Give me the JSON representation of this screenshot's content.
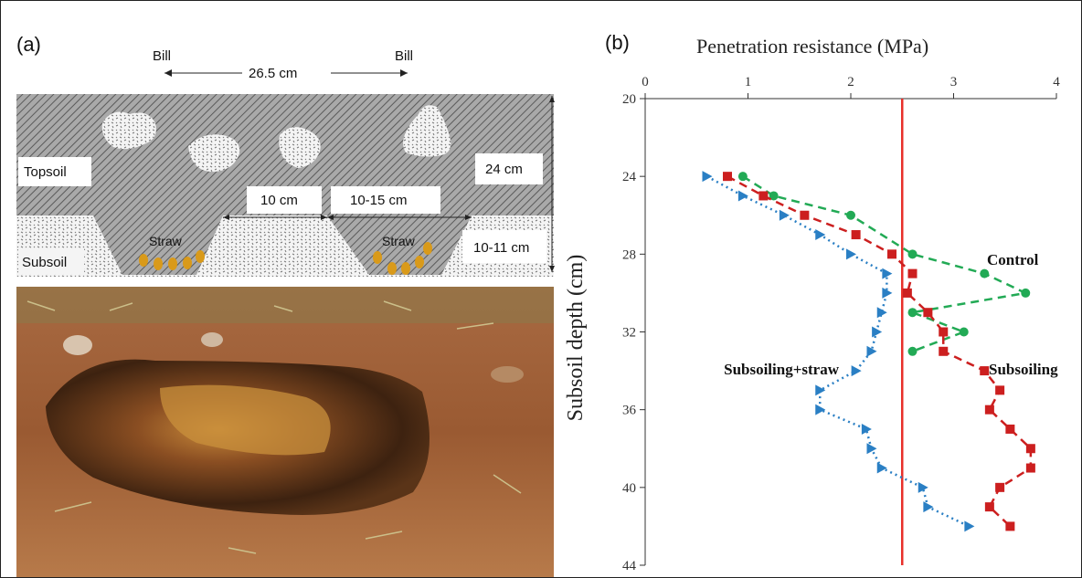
{
  "panel_a": {
    "label": "(a)",
    "bill_left": "Bill",
    "bill_right": "Bill",
    "spacing": "26.5 cm",
    "topsoil_label": "Topsoil",
    "subsoil_label": "Subsoil",
    "depth_topsoil": "24 cm",
    "depth_subsoil": "10-11 cm",
    "width_bottom": "10 cm",
    "width_top": "10-15 cm",
    "straw_left": "Straw",
    "straw_right": "Straw",
    "colors": {
      "topsoil": "#8c8c8c",
      "subsoil": "#e8e8e8",
      "straw": "#d99a1a",
      "soil_dark": "#4a2a12",
      "soil_light": "#b06a3a"
    }
  },
  "chart_data": {
    "type": "line",
    "panel_label": "(b)",
    "title": "Penetration resistance (MPa)",
    "xlabel": "Penetration resistance (MPa)",
    "ylabel": "Subsoil depth (cm)",
    "xlim": [
      0,
      4
    ],
    "ylim": [
      20,
      44
    ],
    "x_axis_position": "top",
    "y_inverted": true,
    "x_ticks": [
      "0",
      "1",
      "2",
      "3",
      "4"
    ],
    "y_ticks": [
      "20",
      "24",
      "28",
      "32",
      "36",
      "40",
      "44"
    ],
    "reference_line": {
      "x": 2.5,
      "color": "#e8302a"
    },
    "series": [
      {
        "name": "Control",
        "color": "#22aa55",
        "marker": "circle",
        "dash": "dashed",
        "points": [
          [
            0.95,
            24
          ],
          [
            1.25,
            25
          ],
          [
            2.0,
            26
          ],
          [
            2.6,
            28
          ],
          [
            3.3,
            29
          ],
          [
            3.7,
            30
          ],
          [
            2.6,
            31
          ],
          [
            3.1,
            32
          ],
          [
            2.6,
            33
          ]
        ]
      },
      {
        "name": "Subsoiling",
        "color": "#cc1f1f",
        "marker": "square",
        "dash": "dashed",
        "points": [
          [
            0.8,
            24
          ],
          [
            1.15,
            25
          ],
          [
            1.55,
            26
          ],
          [
            2.05,
            27
          ],
          [
            2.4,
            28
          ],
          [
            2.6,
            29
          ],
          [
            2.55,
            30
          ],
          [
            2.75,
            31
          ],
          [
            2.9,
            32
          ],
          [
            2.9,
            33
          ],
          [
            3.3,
            34
          ],
          [
            3.45,
            35
          ],
          [
            3.35,
            36
          ],
          [
            3.55,
            37
          ],
          [
            3.75,
            38
          ],
          [
            3.75,
            39
          ],
          [
            3.45,
            40
          ],
          [
            3.35,
            41
          ],
          [
            3.55,
            42
          ]
        ]
      },
      {
        "name": "Subsoiling+straw",
        "color": "#2a7fc4",
        "marker": "triangle",
        "dash": "dotted",
        "points": [
          [
            0.6,
            24
          ],
          [
            0.95,
            25
          ],
          [
            1.35,
            26
          ],
          [
            1.7,
            27
          ],
          [
            2.0,
            28
          ],
          [
            2.35,
            29
          ],
          [
            2.35,
            30
          ],
          [
            2.3,
            31
          ],
          [
            2.25,
            32
          ],
          [
            2.2,
            33
          ],
          [
            2.05,
            34
          ],
          [
            1.7,
            35
          ],
          [
            1.7,
            36
          ],
          [
            2.15,
            37
          ],
          [
            2.2,
            38
          ],
          [
            2.3,
            39
          ],
          [
            2.7,
            40
          ],
          [
            2.75,
            41
          ],
          [
            3.15,
            42
          ]
        ]
      }
    ]
  }
}
